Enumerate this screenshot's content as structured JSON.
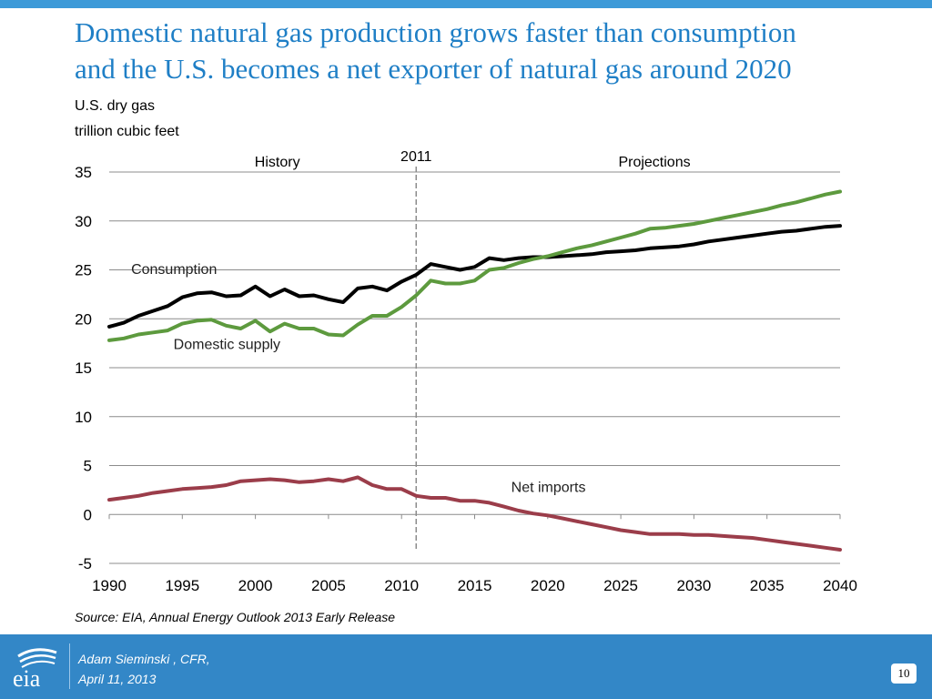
{
  "slide": {
    "title_line1": "Domestic natural gas production grows faster than consumption",
    "title_line2": "and the U.S. becomes a net exporter of natural gas around 2020",
    "source": "Source:  EIA, Annual Energy Outlook 2013 Early Release",
    "footer": {
      "logo_text": "eia",
      "author": "Adam Sieminski , CFR,",
      "date": "April 11, 2013",
      "page_number": "10"
    },
    "colors": {
      "title": "#1f7fc6",
      "footer": "#3387c7",
      "top_bar": "#3d9ad8"
    }
  },
  "chart_data": {
    "type": "line",
    "title": "",
    "ylabel_line1": "U.S. dry gas",
    "ylabel_line2": "trillion cubic feet",
    "xlabel": "",
    "xlim": [
      1990,
      2040
    ],
    "ylim": [
      -5,
      35
    ],
    "x_ticks": [
      "1990",
      "1995",
      "2000",
      "2005",
      "2010",
      "2015",
      "2020",
      "2025",
      "2030",
      "2035",
      "2040"
    ],
    "y_ticks": [
      "35",
      "30",
      "25",
      "20",
      "15",
      "10",
      "5",
      "0",
      "-5"
    ],
    "grid": "horizontal",
    "annotations": {
      "history": "History",
      "projections": "Projections",
      "divider_label": "2011",
      "divider_year": 2011
    },
    "x": [
      1990,
      1991,
      1992,
      1993,
      1994,
      1995,
      1996,
      1997,
      1998,
      1999,
      2000,
      2001,
      2002,
      2003,
      2004,
      2005,
      2006,
      2007,
      2008,
      2009,
      2010,
      2011,
      2012,
      2013,
      2014,
      2015,
      2016,
      2017,
      2018,
      2019,
      2020,
      2021,
      2022,
      2023,
      2024,
      2025,
      2026,
      2027,
      2028,
      2029,
      2030,
      2031,
      2032,
      2033,
      2034,
      2035,
      2036,
      2037,
      2038,
      2039,
      2040
    ],
    "series": [
      {
        "name": "Consumption",
        "color": "#000000",
        "values": [
          19.2,
          19.6,
          20.3,
          20.8,
          21.3,
          22.2,
          22.6,
          22.7,
          22.3,
          22.4,
          23.3,
          22.3,
          23.0,
          22.3,
          22.4,
          22.0,
          21.7,
          23.1,
          23.3,
          22.9,
          23.8,
          24.5,
          25.6,
          25.3,
          25.0,
          25.3,
          26.2,
          26.0,
          26.2,
          26.3,
          26.3,
          26.4,
          26.5,
          26.6,
          26.8,
          26.9,
          27.0,
          27.2,
          27.3,
          27.4,
          27.6,
          27.9,
          28.1,
          28.3,
          28.5,
          28.7,
          28.9,
          29.0,
          29.2,
          29.4,
          29.5
        ],
        "label_pos": [
          1991.5,
          24.6
        ]
      },
      {
        "name": "Domestic supply",
        "color": "#5d9a3e",
        "values": [
          17.8,
          18.0,
          18.4,
          18.6,
          18.8,
          19.5,
          19.8,
          19.9,
          19.3,
          19.0,
          19.8,
          18.7,
          19.5,
          19.0,
          19.0,
          18.4,
          18.3,
          19.4,
          20.3,
          20.3,
          21.2,
          22.4,
          23.9,
          23.6,
          23.6,
          23.9,
          25.0,
          25.2,
          25.7,
          26.1,
          26.4,
          26.8,
          27.2,
          27.5,
          27.9,
          28.3,
          28.7,
          29.2,
          29.3,
          29.5,
          29.7,
          30.0,
          30.3,
          30.6,
          30.9,
          31.2,
          31.6,
          31.9,
          32.3,
          32.7,
          33.0
        ],
        "label_pos": [
          1994.4,
          16.9
        ]
      },
      {
        "name": "Net imports",
        "color": "#9b3d4a",
        "values": [
          1.5,
          1.7,
          1.9,
          2.2,
          2.4,
          2.6,
          2.7,
          2.8,
          3.0,
          3.4,
          3.5,
          3.6,
          3.5,
          3.3,
          3.4,
          3.6,
          3.4,
          3.8,
          3.0,
          2.6,
          2.6,
          1.9,
          1.7,
          1.7,
          1.4,
          1.4,
          1.2,
          0.8,
          0.4,
          0.1,
          -0.1,
          -0.4,
          -0.7,
          -1.0,
          -1.3,
          -1.6,
          -1.8,
          -2.0,
          -2.0,
          -2.0,
          -2.1,
          -2.1,
          -2.2,
          -2.3,
          -2.4,
          -2.6,
          -2.8,
          -3.0,
          -3.2,
          -3.4,
          -3.6
        ],
        "label_pos": [
          2017.5,
          2.3
        ]
      }
    ]
  }
}
